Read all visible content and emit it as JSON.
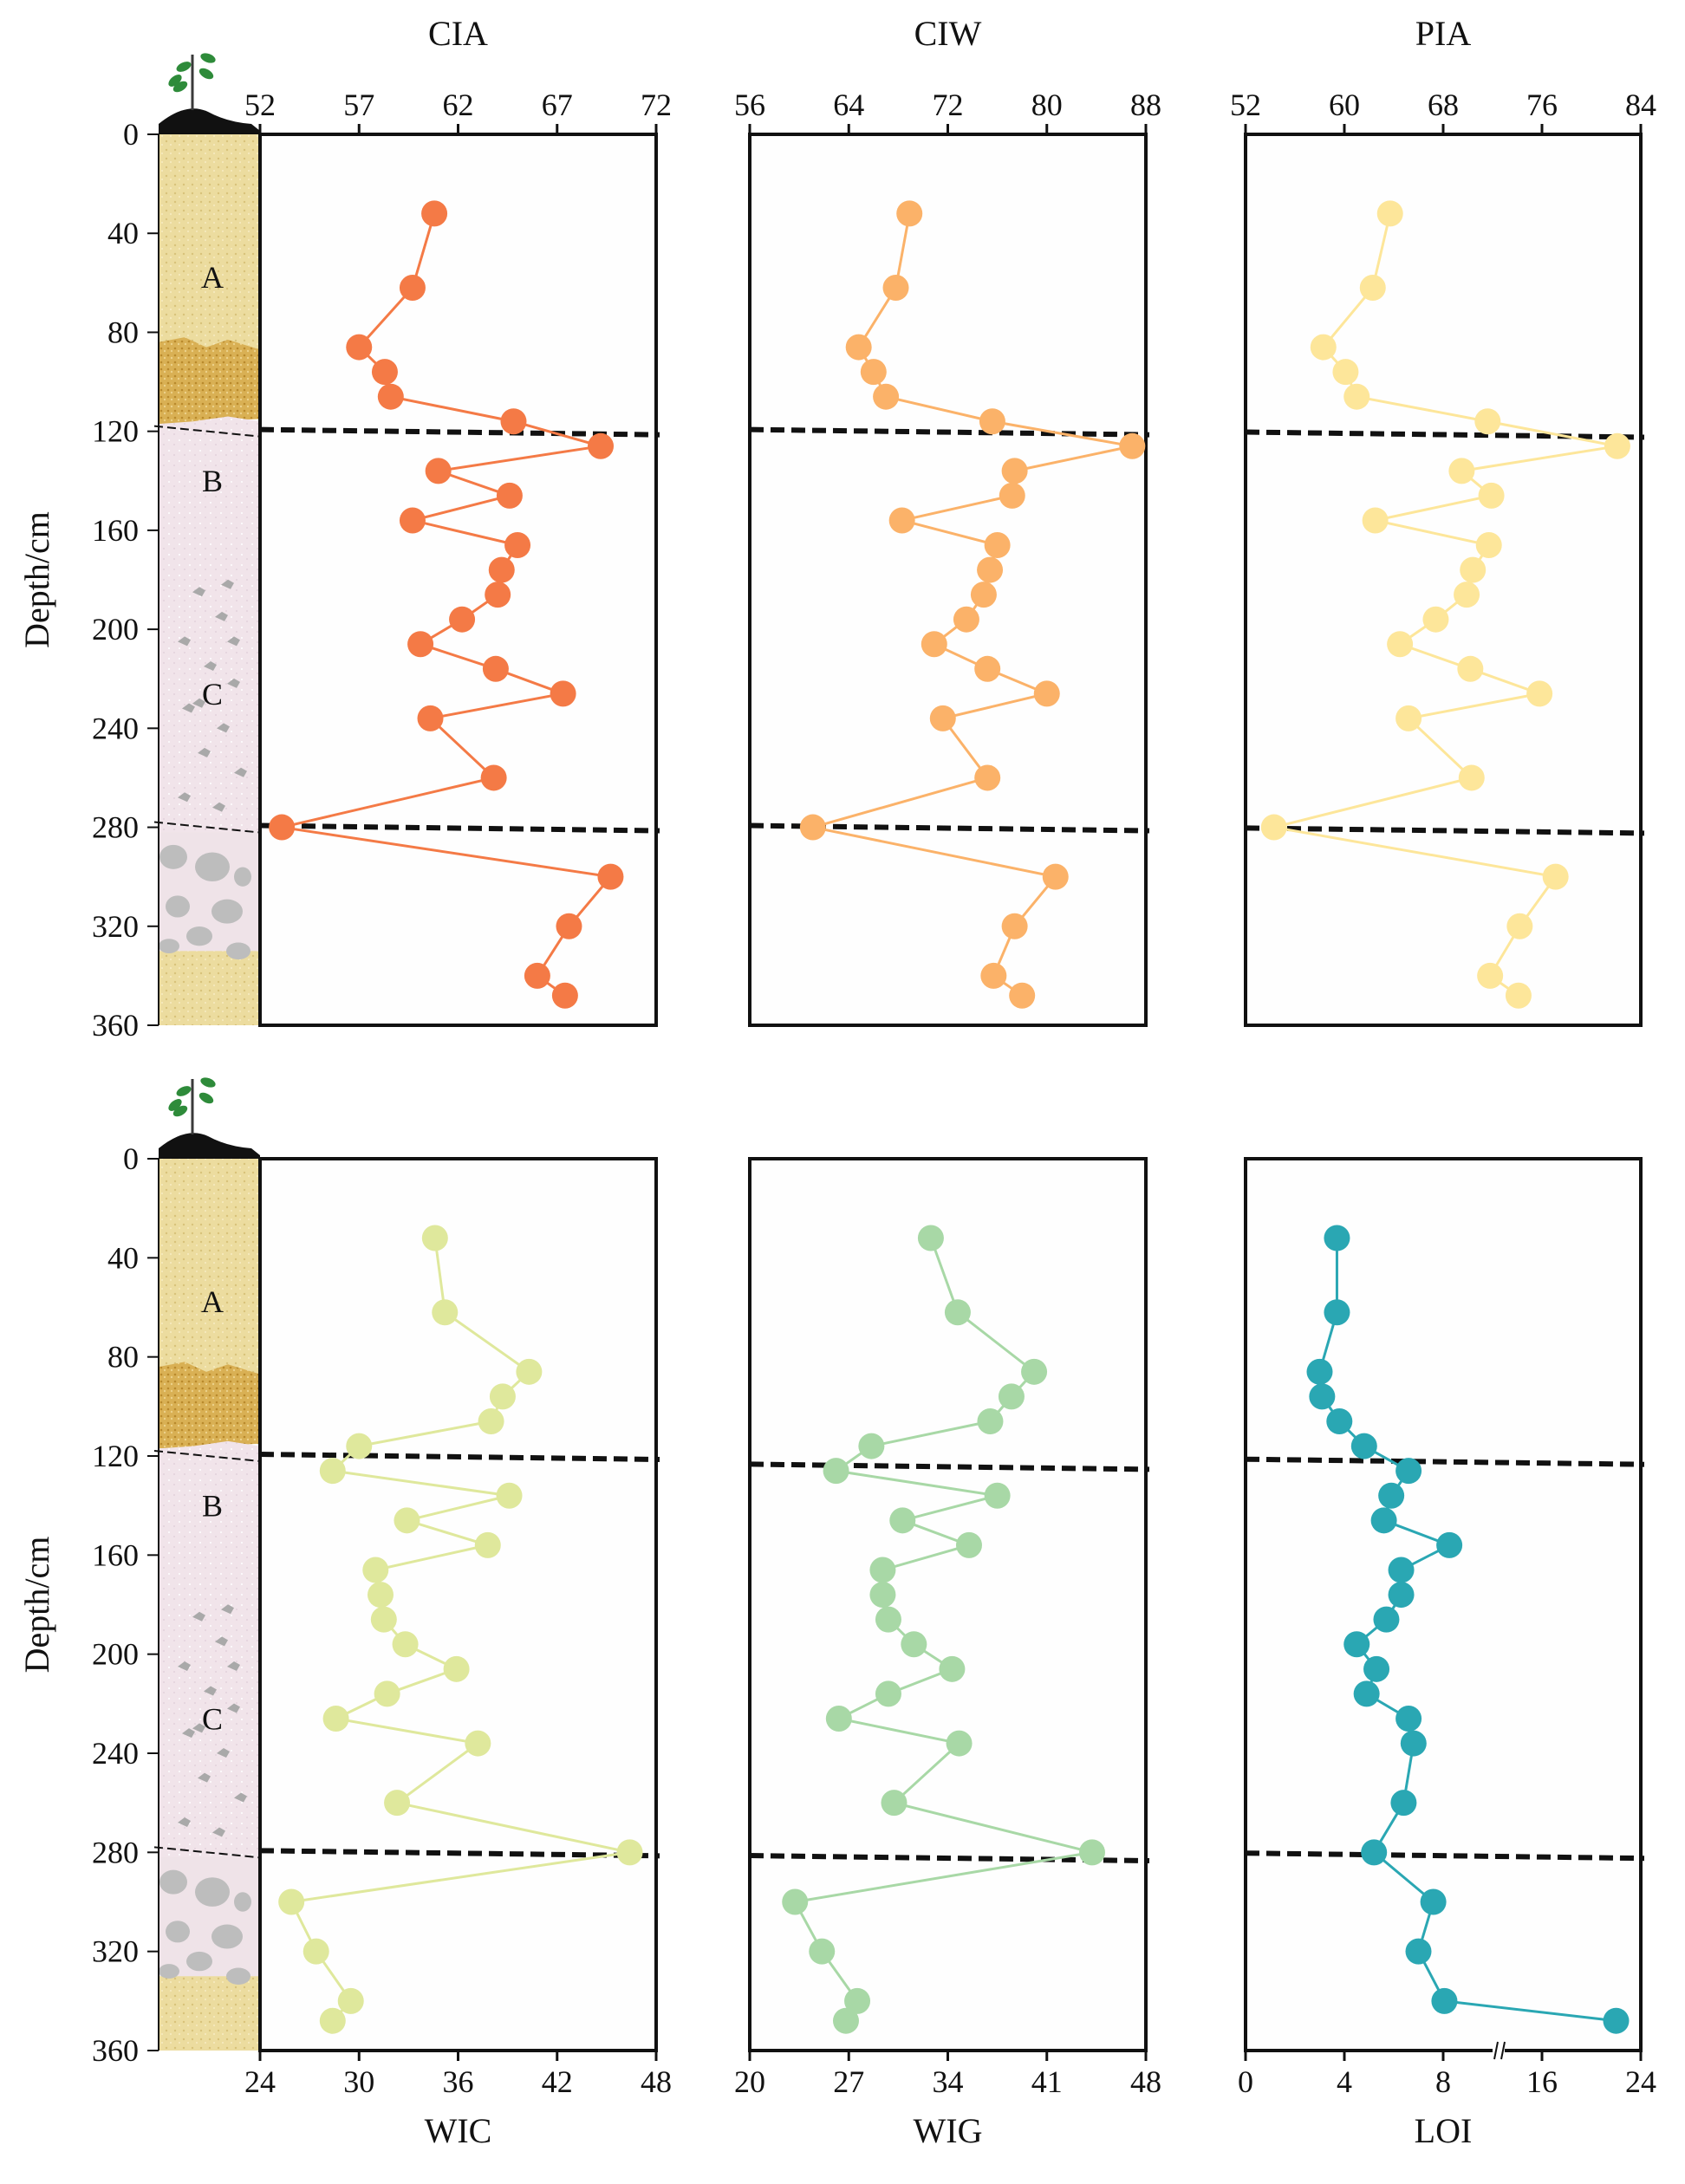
{
  "figure": {
    "y_axis_label": "Depth/cm",
    "depth_ticks": [
      "0",
      "40",
      "80",
      "120",
      "160",
      "200",
      "240",
      "280",
      "320",
      "360"
    ],
    "horizons": [
      "A",
      "B",
      "C"
    ],
    "colors": {
      "CIA": "#f47a46",
      "CIW": "#fbb269",
      "PIA": "#fde69a",
      "WIC": "#dfe89c",
      "WIG": "#a8d8a6",
      "LOI": "#2aa7b3"
    }
  },
  "chart_data": [
    {
      "id": "CIA",
      "type": "line",
      "orientation": "vertical-profile",
      "title": "CIA",
      "axis_side": "top",
      "xlim": [
        52,
        72
      ],
      "ylim": [
        0,
        360
      ],
      "x_ticks": [
        52,
        57,
        62,
        67,
        72
      ],
      "depth": [
        32,
        62,
        86,
        96,
        106,
        116,
        126,
        136,
        146,
        156,
        166,
        176,
        186,
        196,
        206,
        216,
        226,
        236,
        260,
        280,
        300,
        320,
        340,
        348
      ],
      "values": [
        60.8,
        59.7,
        57.0,
        58.3,
        58.6,
        64.8,
        69.2,
        61.0,
        64.6,
        59.7,
        65.0,
        64.2,
        64.0,
        62.2,
        60.1,
        63.9,
        67.3,
        60.6,
        63.8,
        53.1,
        69.7,
        67.6,
        66.0,
        67.4
      ],
      "boundaries": [
        120,
        280
      ]
    },
    {
      "id": "CIW",
      "type": "line",
      "orientation": "vertical-profile",
      "title": "CIW",
      "axis_side": "top",
      "xlim": [
        56,
        88
      ],
      "ylim": [
        0,
        360
      ],
      "x_ticks": [
        56,
        64,
        72,
        80,
        88
      ],
      "depth": [
        32,
        62,
        86,
        96,
        106,
        116,
        126,
        136,
        146,
        156,
        166,
        176,
        186,
        196,
        206,
        216,
        226,
        236,
        260,
        280,
        300,
        320,
        340,
        348
      ],
      "values": [
        68.9,
        67.8,
        64.8,
        66.0,
        67.0,
        75.6,
        86.9,
        77.4,
        77.2,
        68.3,
        76.0,
        75.4,
        74.9,
        73.5,
        70.9,
        75.2,
        80.0,
        71.6,
        75.2,
        61.1,
        80.7,
        77.4,
        75.7,
        78.0
      ],
      "boundaries": [
        120,
        280
      ]
    },
    {
      "id": "PIA",
      "type": "line",
      "orientation": "vertical-profile",
      "title": "PIA",
      "axis_side": "top",
      "xlim": [
        52,
        84
      ],
      "ylim": [
        0,
        360
      ],
      "x_ticks": [
        52,
        60,
        68,
        76,
        84
      ],
      "depth": [
        32,
        62,
        86,
        96,
        106,
        116,
        126,
        136,
        146,
        156,
        166,
        176,
        186,
        196,
        206,
        216,
        226,
        236,
        260,
        280,
        300,
        320,
        340,
        348
      ],
      "values": [
        63.7,
        62.3,
        58.3,
        60.1,
        61.0,
        71.6,
        82.1,
        69.5,
        71.9,
        62.5,
        71.7,
        70.4,
        69.9,
        67.4,
        64.5,
        70.2,
        75.8,
        65.2,
        70.3,
        54.3,
        77.1,
        74.2,
        71.8,
        74.1
      ],
      "boundaries": [
        121,
        281
      ]
    },
    {
      "id": "WIC",
      "type": "line",
      "orientation": "vertical-profile",
      "title": "WIC",
      "axis_side": "bottom",
      "xlim": [
        24,
        48
      ],
      "ylim": [
        0,
        360
      ],
      "x_ticks": [
        24,
        30,
        36,
        42,
        48
      ],
      "depth": [
        32,
        62,
        86,
        96,
        106,
        116,
        126,
        136,
        146,
        156,
        166,
        176,
        186,
        196,
        206,
        216,
        226,
        236,
        260,
        280,
        300,
        320,
        340,
        348
      ],
      "values": [
        34.6,
        35.2,
        40.3,
        38.7,
        38.0,
        30.0,
        28.4,
        39.1,
        32.9,
        37.8,
        31.0,
        31.3,
        31.5,
        32.8,
        35.9,
        31.7,
        28.6,
        37.2,
        32.3,
        46.4,
        25.9,
        27.4,
        29.5,
        28.4
      ],
      "boundaries": [
        120,
        280
      ]
    },
    {
      "id": "WIG",
      "type": "line",
      "orientation": "vertical-profile",
      "title": "WIG",
      "axis_side": "bottom",
      "xlim": [
        20,
        48
      ],
      "ylim": [
        0,
        360
      ],
      "x_ticks": [
        20,
        27,
        34,
        41,
        48
      ],
      "depth": [
        32,
        62,
        86,
        96,
        106,
        116,
        126,
        136,
        146,
        156,
        166,
        176,
        186,
        196,
        206,
        216,
        226,
        236,
        260,
        280,
        300,
        320,
        340,
        348
      ],
      "values": [
        32.8,
        34.7,
        40.1,
        38.5,
        37.0,
        28.6,
        26.1,
        37.5,
        30.8,
        35.5,
        29.4,
        29.4,
        29.8,
        31.6,
        34.3,
        29.8,
        26.3,
        34.8,
        30.2,
        44.2,
        23.2,
        25.1,
        27.6,
        26.8
      ],
      "boundaries": [
        124,
        282
      ]
    },
    {
      "id": "LOI",
      "type": "line",
      "orientation": "vertical-profile",
      "title": "LOI",
      "axis_side": "bottom",
      "xlim": [
        0,
        24
      ],
      "ylim": [
        0,
        360
      ],
      "x_ticks": [
        0,
        4,
        8,
        16,
        24
      ],
      "axis_break": "between 8 and 16",
      "depth": [
        32,
        62,
        86,
        96,
        106,
        116,
        126,
        136,
        146,
        156,
        166,
        176,
        186,
        196,
        206,
        216,
        226,
        236,
        260,
        280,
        300,
        320,
        340,
        348
      ],
      "values": [
        3.7,
        3.7,
        3.0,
        3.1,
        3.8,
        4.8,
        6.6,
        5.9,
        5.6,
        8.5,
        6.3,
        6.3,
        5.7,
        4.5,
        5.3,
        4.9,
        6.6,
        6.8,
        6.4,
        5.2,
        7.6,
        7.0,
        8.1,
        22.0
      ],
      "boundaries": [
        122,
        281
      ]
    }
  ]
}
